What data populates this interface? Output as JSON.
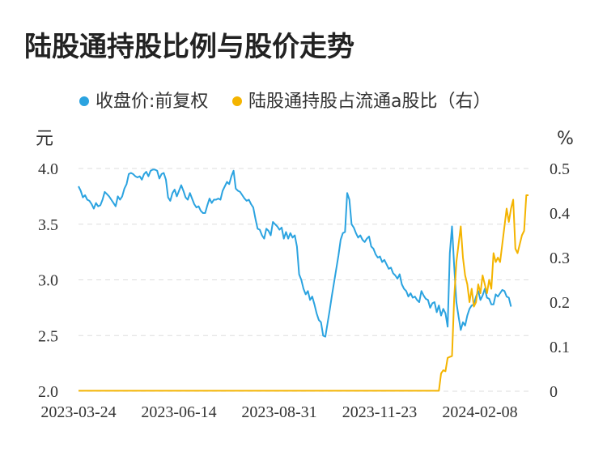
{
  "chart_data": {
    "type": "line",
    "title": "陆股通持股比例与股价走势",
    "legend": {
      "placement": "top",
      "items": [
        {
          "name": "收盘价:前复权",
          "color": "#2ba3e0"
        },
        {
          "name": "陆股通持股占流通a股比（右）",
          "color": "#f4b400"
        }
      ]
    },
    "y_left": {
      "unit": "元",
      "ticks": [
        "4.0",
        "3.5",
        "3.0",
        "2.5",
        "2.0"
      ],
      "ylim": [
        2.0,
        4.0
      ]
    },
    "y_right": {
      "unit": "%",
      "ticks": [
        "0.5",
        "0.4",
        "0.3",
        "0.2",
        "0.1",
        "0"
      ],
      "ylim": [
        0,
        0.5
      ]
    },
    "x_ticks": [
      "2023-03-24",
      "2023-06-14",
      "2023-08-31",
      "2023-11-23",
      "2024-02-08"
    ],
    "grid": "horizontal dashed",
    "series": [
      {
        "name": "收盘价:前复权",
        "axis": "left",
        "color": "#2ba3e0",
        "points": [
          [
            0,
            3.84
          ],
          [
            1,
            3.8
          ],
          [
            2,
            3.74
          ],
          [
            3,
            3.76
          ],
          [
            4,
            3.72
          ],
          [
            5,
            3.71
          ],
          [
            6,
            3.68
          ],
          [
            7,
            3.64
          ],
          [
            8,
            3.69
          ],
          [
            9,
            3.66
          ],
          [
            10,
            3.67
          ],
          [
            11,
            3.72
          ],
          [
            12,
            3.79
          ],
          [
            13,
            3.77
          ],
          [
            14,
            3.75
          ],
          [
            15,
            3.72
          ],
          [
            16,
            3.69
          ],
          [
            17,
            3.66
          ],
          [
            18,
            3.75
          ],
          [
            19,
            3.72
          ],
          [
            20,
            3.75
          ],
          [
            21,
            3.82
          ],
          [
            22,
            3.86
          ],
          [
            23,
            3.95
          ],
          [
            24,
            3.96
          ],
          [
            25,
            3.95
          ],
          [
            26,
            3.93
          ],
          [
            27,
            3.92
          ],
          [
            28,
            3.93
          ],
          [
            29,
            3.9
          ],
          [
            30,
            3.95
          ],
          [
            31,
            3.97
          ],
          [
            32,
            3.93
          ],
          [
            33,
            3.98
          ],
          [
            34,
            3.99
          ],
          [
            35,
            3.99
          ],
          [
            36,
            3.98
          ],
          [
            37,
            3.91
          ],
          [
            38,
            3.95
          ],
          [
            39,
            3.96
          ],
          [
            40,
            3.9
          ],
          [
            41,
            3.74
          ],
          [
            42,
            3.71
          ],
          [
            43,
            3.78
          ],
          [
            44,
            3.81
          ],
          [
            45,
            3.75
          ],
          [
            46,
            3.8
          ],
          [
            47,
            3.85
          ],
          [
            48,
            3.8
          ],
          [
            49,
            3.74
          ],
          [
            50,
            3.72
          ],
          [
            51,
            3.78
          ],
          [
            52,
            3.73
          ],
          [
            53,
            3.68
          ],
          [
            54,
            3.65
          ],
          [
            55,
            3.66
          ],
          [
            56,
            3.62
          ],
          [
            57,
            3.6
          ],
          [
            58,
            3.6
          ],
          [
            59,
            3.67
          ],
          [
            60,
            3.73
          ],
          [
            61,
            3.69
          ],
          [
            62,
            3.72
          ],
          [
            63,
            3.72
          ],
          [
            64,
            3.73
          ],
          [
            65,
            3.72
          ],
          [
            66,
            3.8
          ],
          [
            67,
            3.84
          ],
          [
            68,
            3.88
          ],
          [
            69,
            3.86
          ],
          [
            70,
            3.93
          ],
          [
            71,
            3.98
          ],
          [
            72,
            3.82
          ],
          [
            73,
            3.8
          ],
          [
            74,
            3.79
          ],
          [
            75,
            3.76
          ],
          [
            76,
            3.73
          ],
          [
            77,
            3.71
          ],
          [
            78,
            3.72
          ],
          [
            79,
            3.68
          ],
          [
            80,
            3.65
          ],
          [
            81,
            3.55
          ],
          [
            82,
            3.46
          ],
          [
            83,
            3.45
          ],
          [
            84,
            3.4
          ],
          [
            85,
            3.37
          ],
          [
            86,
            3.46
          ],
          [
            87,
            3.44
          ],
          [
            88,
            3.4
          ],
          [
            89,
            3.52
          ],
          [
            90,
            3.5
          ],
          [
            91,
            3.48
          ],
          [
            92,
            3.45
          ],
          [
            93,
            3.47
          ],
          [
            94,
            3.37
          ],
          [
            95,
            3.43
          ],
          [
            96,
            3.37
          ],
          [
            97,
            3.42
          ],
          [
            98,
            3.38
          ],
          [
            99,
            3.4
          ],
          [
            100,
            3.3
          ],
          [
            101,
            3.05
          ],
          [
            102,
            3.0
          ],
          [
            103,
            2.92
          ],
          [
            104,
            2.87
          ],
          [
            105,
            2.9
          ],
          [
            106,
            2.82
          ],
          [
            107,
            2.85
          ],
          [
            108,
            2.78
          ],
          [
            109,
            2.7
          ],
          [
            110,
            2.64
          ],
          [
            111,
            2.62
          ],
          [
            112,
            2.5
          ],
          [
            113,
            2.49
          ],
          [
            114,
            2.61
          ],
          [
            115,
            2.73
          ],
          [
            116,
            2.86
          ],
          [
            117,
            2.98
          ],
          [
            118,
            3.1
          ],
          [
            119,
            3.22
          ],
          [
            120,
            3.36
          ],
          [
            121,
            3.42
          ],
          [
            122,
            3.43
          ],
          [
            123,
            3.78
          ],
          [
            124,
            3.72
          ],
          [
            125,
            3.5
          ],
          [
            126,
            3.47
          ],
          [
            127,
            3.42
          ],
          [
            128,
            3.38
          ],
          [
            129,
            3.4
          ],
          [
            130,
            3.36
          ],
          [
            131,
            3.34
          ],
          [
            132,
            3.37
          ],
          [
            133,
            3.39
          ],
          [
            134,
            3.3
          ],
          [
            135,
            3.28
          ],
          [
            136,
            3.23
          ],
          [
            137,
            3.2
          ],
          [
            138,
            3.21
          ],
          [
            139,
            3.16
          ],
          [
            140,
            3.18
          ],
          [
            141,
            3.14
          ],
          [
            142,
            3.1
          ],
          [
            143,
            3.11
          ],
          [
            144,
            3.06
          ],
          [
            145,
            3.04
          ],
          [
            146,
            3.01
          ],
          [
            147,
            3.05
          ],
          [
            148,
            2.96
          ],
          [
            149,
            2.92
          ],
          [
            150,
            2.9
          ],
          [
            151,
            2.85
          ],
          [
            152,
            2.88
          ],
          [
            153,
            2.84
          ],
          [
            154,
            2.85
          ],
          [
            155,
            2.82
          ],
          [
            156,
            2.8
          ],
          [
            157,
            2.9
          ],
          [
            158,
            2.86
          ],
          [
            159,
            2.83
          ],
          [
            160,
            2.82
          ],
          [
            161,
            2.75
          ],
          [
            162,
            2.79
          ],
          [
            163,
            2.8
          ],
          [
            164,
            2.71
          ],
          [
            165,
            2.77
          ],
          [
            166,
            2.68
          ],
          [
            167,
            2.74
          ],
          [
            168,
            2.7
          ],
          [
            169,
            2.58
          ],
          [
            170,
            3.24
          ],
          [
            171,
            3.48
          ],
          [
            172,
            3.12
          ],
          [
            173,
            2.8
          ],
          [
            174,
            2.67
          ],
          [
            175,
            2.55
          ],
          [
            176,
            2.62
          ],
          [
            177,
            2.59
          ],
          [
            178,
            2.68
          ],
          [
            179,
            2.74
          ],
          [
            180,
            2.77
          ],
          [
            181,
            2.78
          ],
          [
            182,
            2.85
          ],
          [
            183,
            2.9
          ],
          [
            184,
            2.82
          ],
          [
            185,
            2.86
          ],
          [
            186,
            2.92
          ],
          [
            187,
            2.84
          ],
          [
            188,
            2.83
          ],
          [
            189,
            2.78
          ],
          [
            190,
            2.78
          ],
          [
            191,
            2.87
          ],
          [
            192,
            2.85
          ],
          [
            193,
            2.88
          ],
          [
            194,
            2.91
          ],
          [
            195,
            2.9
          ],
          [
            196,
            2.85
          ],
          [
            197,
            2.84
          ],
          [
            198,
            2.76
          ]
        ]
      },
      {
        "name": "陆股通持股占流通a股比（右）",
        "axis": "right",
        "color": "#f4b400",
        "points": [
          [
            0,
            0.001
          ],
          [
            163,
            0.001
          ],
          [
            165,
            0.001
          ],
          [
            166,
            0.04
          ],
          [
            167,
            0.047
          ],
          [
            168,
            0.045
          ],
          [
            169,
            0.075
          ],
          [
            170,
            0.077
          ],
          [
            171,
            0.079
          ],
          [
            172,
            0.21
          ],
          [
            173,
            0.29
          ],
          [
            174,
            0.33
          ],
          [
            175,
            0.37
          ],
          [
            176,
            0.3
          ],
          [
            177,
            0.26
          ],
          [
            178,
            0.24
          ],
          [
            179,
            0.2
          ],
          [
            180,
            0.23
          ],
          [
            181,
            0.19
          ],
          [
            182,
            0.2
          ],
          [
            183,
            0.24
          ],
          [
            184,
            0.22
          ],
          [
            185,
            0.26
          ],
          [
            186,
            0.24
          ],
          [
            187,
            0.22
          ],
          [
            188,
            0.25
          ],
          [
            189,
            0.23
          ],
          [
            190,
            0.31
          ],
          [
            191,
            0.29
          ],
          [
            192,
            0.3
          ],
          [
            193,
            0.29
          ],
          [
            194,
            0.33
          ],
          [
            195,
            0.37
          ],
          [
            196,
            0.41
          ],
          [
            197,
            0.38
          ],
          [
            198,
            0.41
          ],
          [
            199,
            0.43
          ],
          [
            200,
            0.32
          ],
          [
            201,
            0.31
          ],
          [
            202,
            0.33
          ],
          [
            203,
            0.35
          ],
          [
            204,
            0.36
          ],
          [
            205,
            0.44
          ],
          [
            206,
            0.44
          ]
        ]
      }
    ],
    "x_index_range": [
      0,
      206
    ]
  }
}
